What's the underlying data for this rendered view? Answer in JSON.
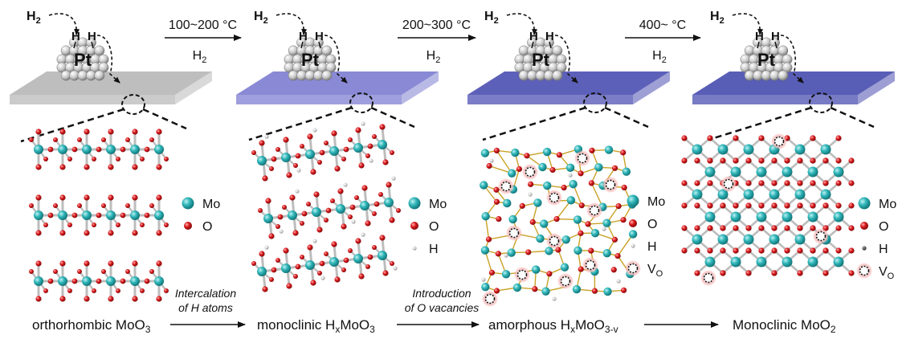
{
  "colors": {
    "mo_atom": "#2fb5b8",
    "o_atom": "#d9191c",
    "h_light": "#cfcfcf",
    "h_dark": "#555555",
    "bond": "#c9a227",
    "vacancy_glow": "#f4a0a0",
    "plate_stage1": "#b9b9b9",
    "plate_stage2": "#7f7fd1",
    "plate_stage3": "#4f52b3",
    "plate_stage4": "#4a4fb0"
  },
  "icons": [
    "hydrogen-spillover-arrow-icon",
    "pt-nanoparticle-icon",
    "process-arrow-icon"
  ],
  "hydrogen": {
    "h2_main": "H",
    "h2_sub": "2",
    "atom": "H"
  },
  "catalyst_label": "Pt",
  "gas": {
    "main": "H",
    "sub": "2"
  },
  "temperatures": [
    "100~200 °C",
    "200~300 °C",
    "400~ °C"
  ],
  "processes": [
    {
      "line1": "Intercalation",
      "line2": "of H atoms"
    },
    {
      "line1": "Introduction",
      "line2": "of O vacancies"
    }
  ],
  "stages": [
    {
      "prefix": "orthorhombic MoO",
      "sub1": "3",
      "mid": "",
      "sub2": ""
    },
    {
      "prefix": "monoclinic H",
      "sub1": "x",
      "mid": "MoO",
      "sub2": "3"
    },
    {
      "prefix": "amorphous H",
      "sub1": "x",
      "mid": "MoO",
      "sub2": "3-v"
    },
    {
      "prefix": "Monoclinic MoO",
      "sub1": "2",
      "mid": "",
      "sub2": ""
    }
  ],
  "legend": {
    "mo": "Mo",
    "o": "O",
    "h": "H",
    "vo_main": "V",
    "vo_sub": "O"
  }
}
